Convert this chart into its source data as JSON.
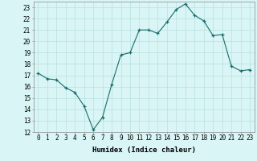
{
  "x": [
    0,
    1,
    2,
    3,
    4,
    5,
    6,
    7,
    8,
    9,
    10,
    11,
    12,
    13,
    14,
    15,
    16,
    17,
    18,
    19,
    20,
    21,
    22,
    23
  ],
  "y": [
    17.2,
    16.7,
    16.6,
    15.9,
    15.5,
    14.3,
    12.2,
    13.3,
    16.2,
    18.8,
    19.0,
    21.0,
    21.0,
    20.7,
    21.7,
    22.8,
    23.3,
    22.3,
    21.8,
    20.5,
    20.6,
    17.8,
    17.4,
    17.5
  ],
  "line_color": "#1a6b6b",
  "marker_color": "#1a6b6b",
  "bg_color": "#d9f5f5",
  "grid_color": "#b8e0e0",
  "xlabel": "Humidex (Indice chaleur)",
  "xlim": [
    -0.5,
    23.5
  ],
  "ylim": [
    12,
    23.5
  ],
  "yticks": [
    12,
    13,
    14,
    15,
    16,
    17,
    18,
    19,
    20,
    21,
    22,
    23
  ],
  "xticks": [
    0,
    1,
    2,
    3,
    4,
    5,
    6,
    7,
    8,
    9,
    10,
    11,
    12,
    13,
    14,
    15,
    16,
    17,
    18,
    19,
    20,
    21,
    22,
    23
  ],
  "xlabel_fontsize": 6.5,
  "tick_fontsize": 5.5,
  "font_family": "monospace"
}
